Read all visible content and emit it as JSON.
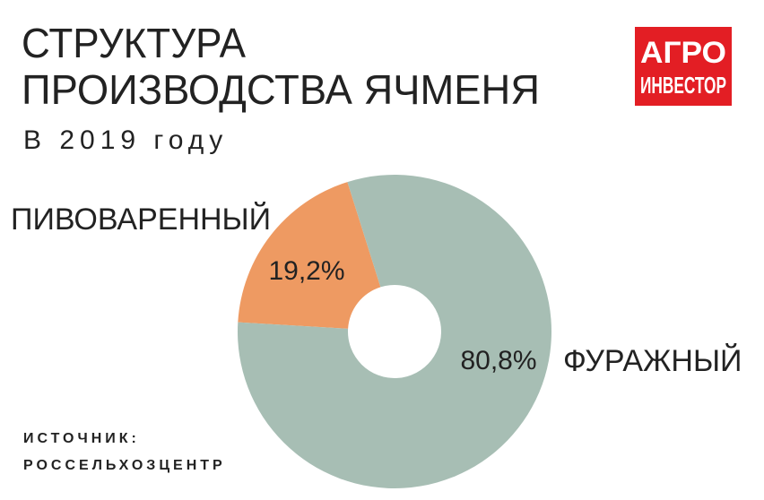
{
  "chart_data": {
    "type": "pie",
    "title": [
      "СТРУКТУРА",
      "ПРОИЗВОДСТВА ЯЧМЕНЯ"
    ],
    "subtitle": "В 2019 году",
    "categories": [
      "ПИВОВАРЕННЫЙ",
      "ФУРАЖНЫЙ"
    ],
    "values": [
      19.2,
      80.8
    ],
    "value_labels": [
      "19,2%",
      "80,8%"
    ],
    "colors": [
      "#ee9a62",
      "#a7beb4"
    ],
    "source": [
      "ИСТОЧНИК:",
      "РОССЕЛЬХОЗЦЕНТР"
    ]
  },
  "logo": [
    "АГРО",
    "ИНВЕСТОР"
  ]
}
